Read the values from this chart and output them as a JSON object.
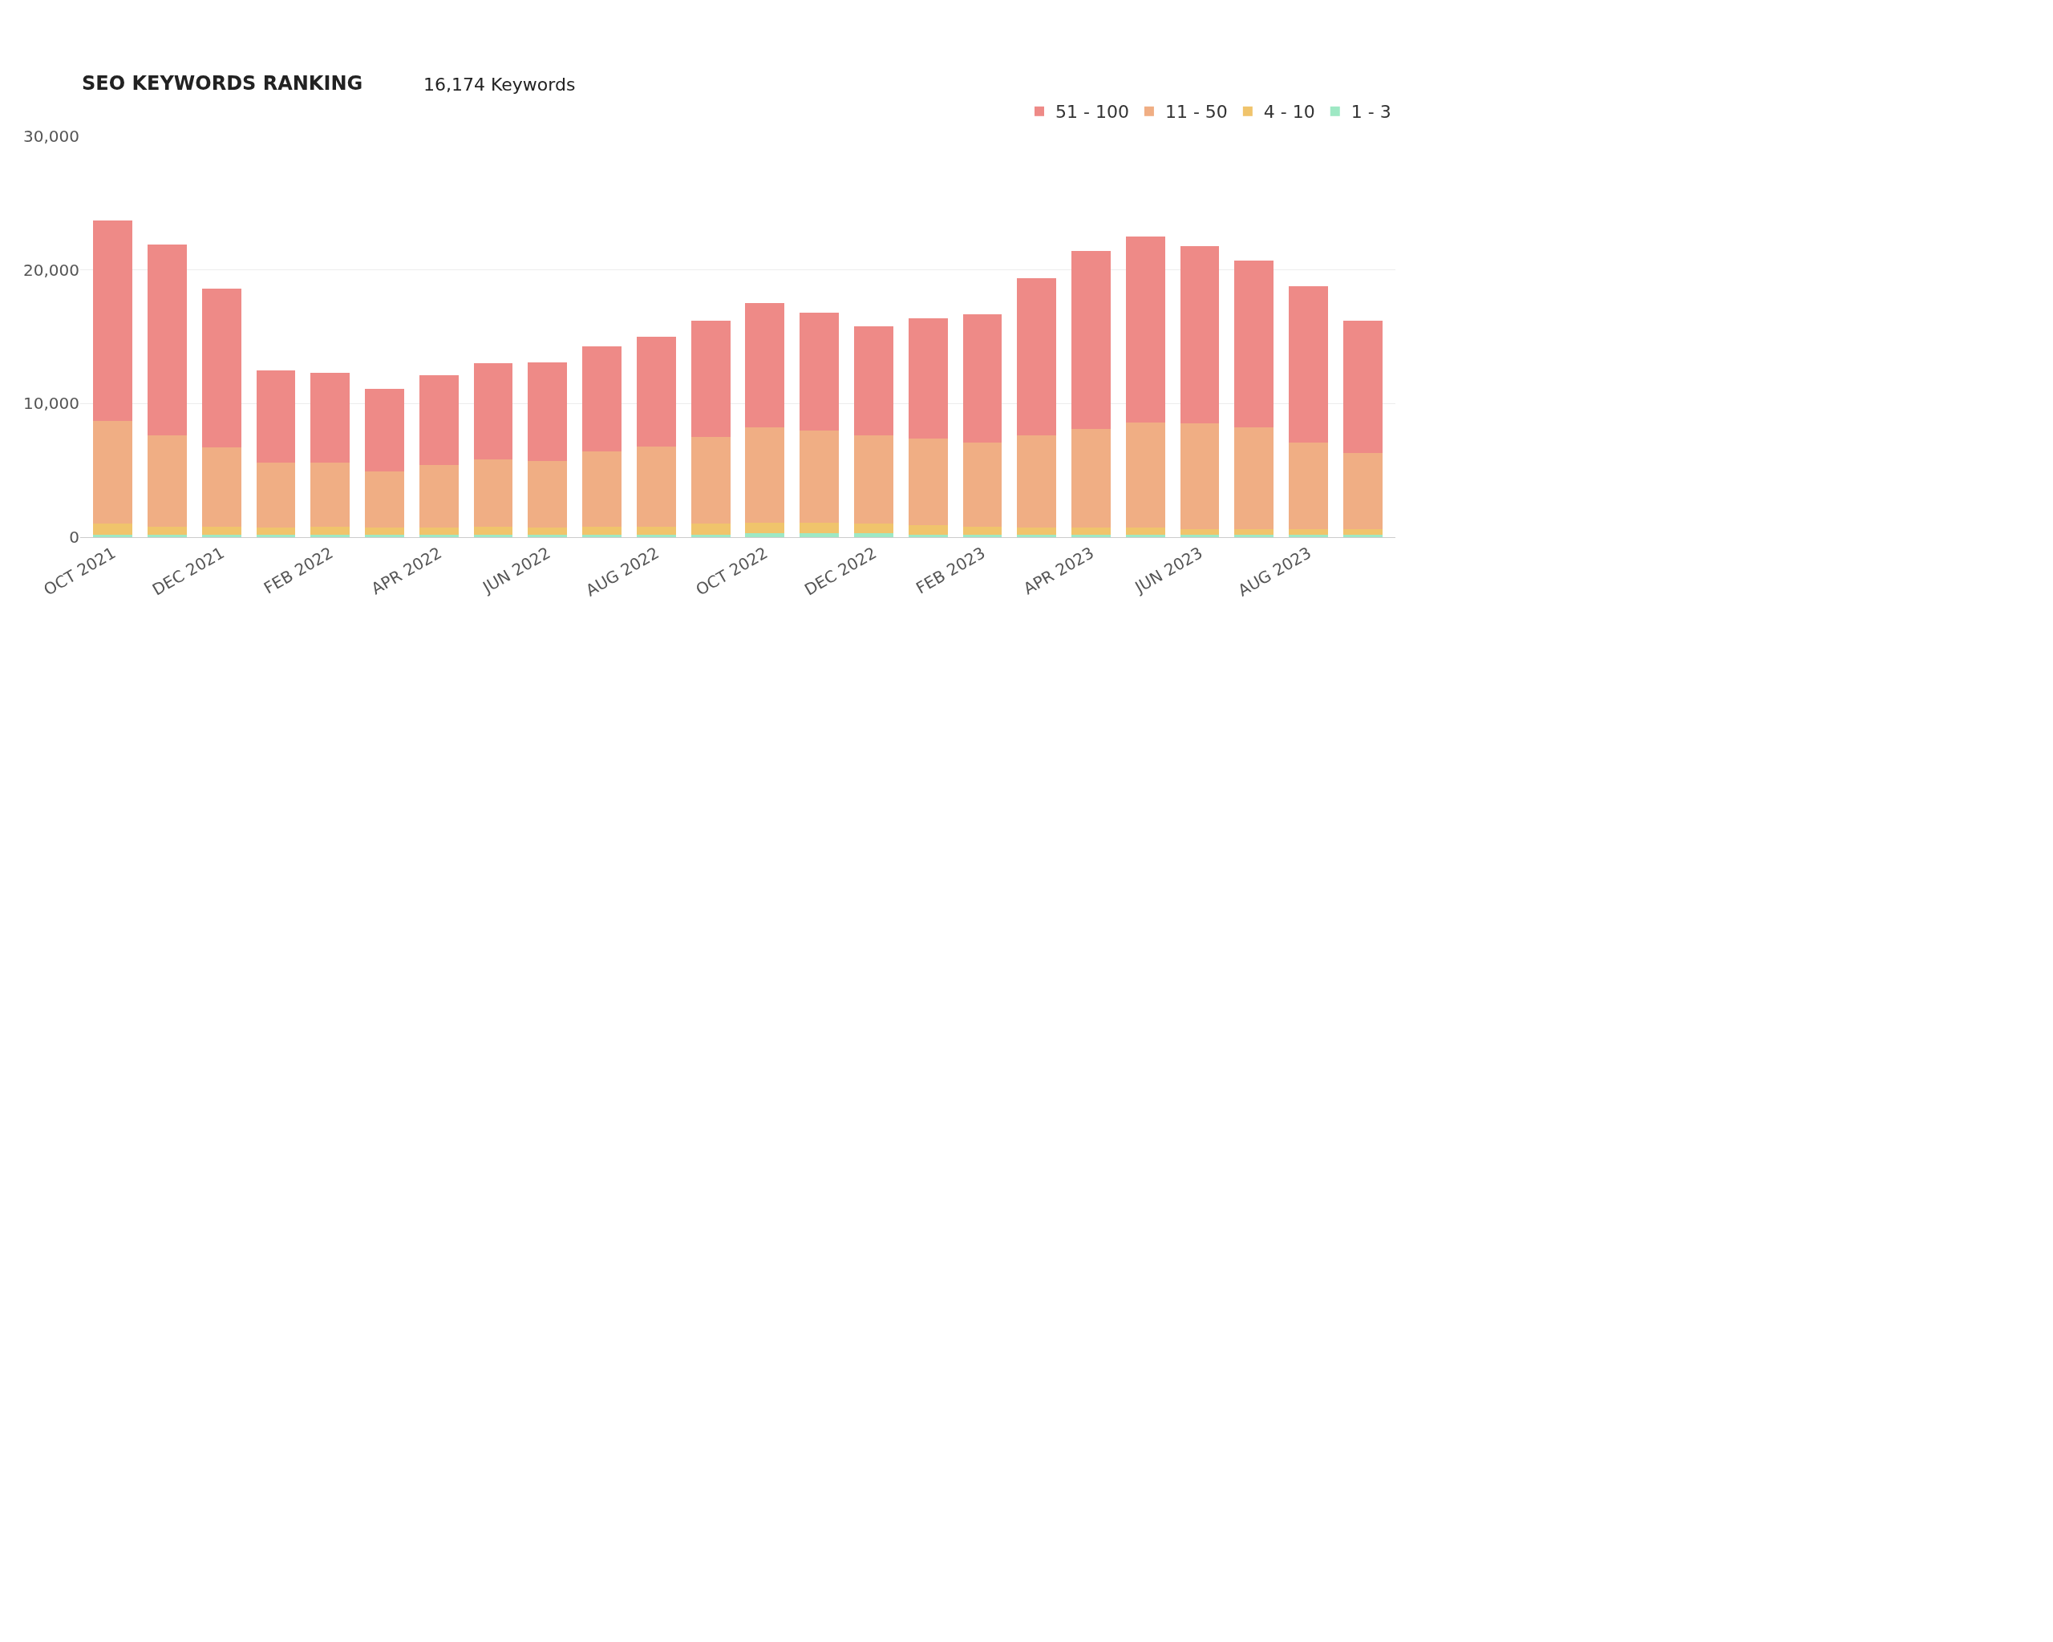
{
  "chart_data": {
    "type": "bar",
    "title": "SEO KEYWORDS RANKING",
    "subtitle": "16,174 Keywords",
    "categories": [
      "OCT 2021",
      null,
      "DEC 2021",
      null,
      "FEB 2022",
      null,
      "APR 2022",
      null,
      "JUN 2022",
      null,
      "AUG 2022",
      null,
      "OCT 2022",
      null,
      "DEC 2022",
      null,
      "FEB 2023",
      null,
      "APR 2023",
      null,
      "JUN 2023",
      null,
      "AUG 2023",
      null
    ],
    "stacked": true,
    "series": [
      {
        "name": "1 - 3",
        "color": "#9ee8c4",
        "values": [
          200,
          200,
          200,
          200,
          200,
          200,
          200,
          200,
          200,
          200,
          200,
          200,
          300,
          300,
          300,
          200,
          200,
          200,
          200,
          200,
          200,
          200,
          200,
          200
        ]
      },
      {
        "name": "4 - 10",
        "color": "#f0c46c",
        "values": [
          800,
          600,
          600,
          500,
          600,
          500,
          500,
          600,
          500,
          600,
          600,
          800,
          800,
          800,
          700,
          700,
          600,
          500,
          500,
          500,
          400,
          400,
          400,
          400
        ]
      },
      {
        "name": "11 - 50",
        "color": "#f0ae84",
        "values": [
          7700,
          6800,
          5900,
          4900,
          4800,
          4200,
          4700,
          5000,
          5000,
          5600,
          6000,
          6500,
          7100,
          6900,
          6600,
          6500,
          6300,
          6900,
          7400,
          7900,
          7900,
          7600,
          6500,
          5700
        ]
      },
      {
        "name": "51 - 100",
        "color": "#ee8a87",
        "values": [
          15000,
          14300,
          11900,
          6900,
          6700,
          6200,
          6700,
          7200,
          7400,
          7900,
          8200,
          8700,
          9300,
          8800,
          8200,
          9000,
          9600,
          11800,
          13300,
          13900,
          13300,
          12500,
          11700,
          9900
        ]
      }
    ],
    "ylim": [
      0,
      30000
    ],
    "yticks": [
      0,
      {
        "value": 10000,
        "label": "10,000"
      },
      {
        "value": 20000,
        "label": "20,000"
      },
      {
        "value": 30000,
        "label": "30,000"
      }
    ],
    "grid": "y",
    "legend": "top right"
  }
}
